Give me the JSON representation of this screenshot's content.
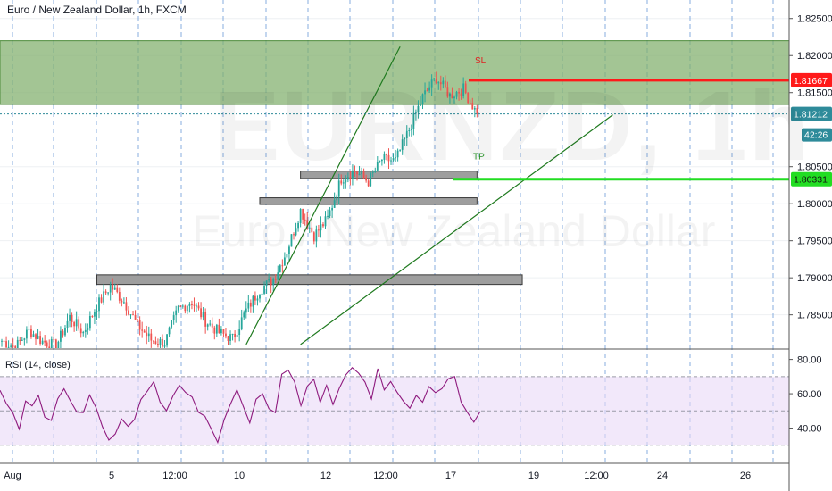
{
  "header": {
    "title": "Euro / New Zealand Dollar, 1h, FXCM"
  },
  "watermark": {
    "symbol": "EURNZD, 1h",
    "name": "Euro / New Zealand Dollar"
  },
  "rsi_panel": {
    "title": "RSI (14, close)"
  },
  "chart_data": {
    "type": "candlestick",
    "title": "Euro / New Zealand Dollar, 1h, FXCM",
    "ylim": [
      1.7805,
      1.8275
    ],
    "price_ticks": [
      "1.82500",
      "1.82000",
      "1.81500",
      "1.80500",
      "1.80000",
      "1.79500",
      "1.79000",
      "1.78500"
    ],
    "time_labels": [
      "Aug",
      "5",
      "12:00",
      "10",
      "12",
      "12:00",
      "17",
      "19",
      "12:00",
      "24",
      "26"
    ],
    "grid": true,
    "candles_close_path": [
      [
        0,
        1.7815
      ],
      [
        6,
        1.7806
      ],
      [
        12,
        1.7829
      ],
      [
        18,
        1.7814
      ],
      [
        24,
        1.7808
      ],
      [
        30,
        1.7847
      ],
      [
        36,
        1.7826
      ],
      [
        42,
        1.7862
      ],
      [
        48,
        1.7889
      ],
      [
        54,
        1.7868
      ],
      [
        60,
        1.7836
      ],
      [
        66,
        1.7816
      ],
      [
        72,
        1.7812
      ],
      [
        78,
        1.7858
      ],
      [
        84,
        1.7868
      ],
      [
        90,
        1.7842
      ],
      [
        96,
        1.7826
      ],
      [
        102,
        1.7818
      ],
      [
        108,
        1.7856
      ],
      [
        114,
        1.7884
      ],
      [
        120,
        1.7898
      ],
      [
        126,
        1.7936
      ],
      [
        132,
        1.7991
      ],
      [
        138,
        1.7957
      ],
      [
        144,
        1.798
      ],
      [
        150,
        1.8034
      ],
      [
        156,
        1.8044
      ],
      [
        162,
        1.803
      ],
      [
        168,
        1.806
      ],
      [
        174,
        1.8058
      ],
      [
        180,
        1.81
      ],
      [
        186,
        1.8144
      ],
      [
        192,
        1.817
      ],
      [
        198,
        1.8146
      ],
      [
        204,
        1.8155
      ],
      [
        210,
        1.8121
      ]
    ],
    "resistance_zone": {
      "top": 1.822,
      "bottom": 1.8134,
      "color": "#7fae6b"
    },
    "levels": [
      {
        "label": "SL",
        "price": 1.81667,
        "badge": "1.81667",
        "color": "#ff1a1a"
      },
      {
        "label": "TP",
        "price": 1.80331,
        "badge": "1.80331",
        "color": "#22dd22"
      }
    ],
    "current_price": {
      "badge": "1.81212",
      "price": 1.81212,
      "countdown": "42:26",
      "color": "#2e8b9a"
    },
    "support_boxes": [
      {
        "start": 132,
        "end": 210,
        "top": 1.8044,
        "bottom": 1.8034
      },
      {
        "start": 114,
        "end": 210,
        "top": 1.8008,
        "bottom": 1.7999
      },
      {
        "start": 42,
        "end": 230,
        "top": 1.7904,
        "bottom": 1.7891
      }
    ],
    "trendlines": [
      {
        "from": [
          108,
          1.781
        ],
        "to": [
          176,
          1.8212
        ]
      },
      {
        "from": [
          132,
          1.781
        ],
        "to": [
          270,
          1.812
        ]
      }
    ]
  },
  "rsi_data": {
    "ylim": [
      20,
      85
    ],
    "ticks": [
      "80.00",
      "60.00",
      "40.00"
    ],
    "band": [
      30,
      70
    ],
    "values": [
      62,
      55,
      48,
      40,
      56,
      52,
      60,
      46,
      44,
      58,
      62,
      56,
      50,
      48,
      60,
      52,
      40,
      34,
      36,
      45,
      42,
      44,
      57,
      62,
      66,
      56,
      50,
      58,
      66,
      60,
      58,
      50,
      46,
      40,
      32,
      44,
      55,
      62,
      52,
      44,
      56,
      60,
      52,
      48,
      72,
      74,
      66,
      54,
      64,
      68,
      56,
      64,
      54,
      64,
      70,
      76,
      72,
      66,
      58,
      74,
      62,
      68,
      60,
      56,
      52,
      58,
      56,
      64,
      60,
      64,
      68,
      70,
      56,
      48,
      44,
      50
    ]
  }
}
